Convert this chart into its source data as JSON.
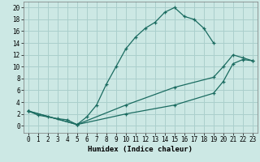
{
  "xlabel": "Humidex (Indice chaleur)",
  "background_color": "#cce8e4",
  "grid_color": "#aacfcc",
  "line_color": "#1a6b60",
  "xlim": [
    -0.5,
    23.5
  ],
  "ylim": [
    -1.2,
    21
  ],
  "xticks": [
    0,
    1,
    2,
    3,
    4,
    5,
    6,
    7,
    8,
    9,
    10,
    11,
    12,
    13,
    14,
    15,
    16,
    17,
    18,
    19,
    20,
    21,
    22,
    23
  ],
  "yticks": [
    0,
    2,
    4,
    6,
    8,
    10,
    12,
    14,
    16,
    18,
    20
  ],
  "line1_x": [
    0,
    1,
    2,
    3,
    4,
    5,
    6,
    7,
    8,
    9,
    10,
    11,
    12,
    13,
    14,
    15,
    16,
    17,
    18,
    19
  ],
  "line1_y": [
    2.5,
    1.8,
    1.5,
    1.2,
    1.0,
    0.2,
    1.5,
    3.5,
    7.0,
    10.0,
    13.0,
    15.0,
    16.5,
    17.5,
    19.2,
    20.0,
    18.5,
    18.0,
    16.5,
    14.0
  ],
  "line2_x": [
    0,
    5,
    10,
    15,
    19,
    20,
    21,
    22,
    23
  ],
  "line2_y": [
    2.5,
    0.2,
    3.5,
    6.5,
    8.2,
    10.0,
    12.0,
    11.5,
    11.0
  ],
  "line3_x": [
    0,
    5,
    10,
    15,
    19,
    20,
    21,
    22,
    23
  ],
  "line3_y": [
    2.5,
    0.2,
    2.0,
    3.5,
    5.5,
    7.5,
    10.5,
    11.2,
    11.0
  ],
  "tick_fontsize": 5.5,
  "xlabel_fontsize": 6.5,
  "marker_size": 3,
  "linewidth": 0.9
}
